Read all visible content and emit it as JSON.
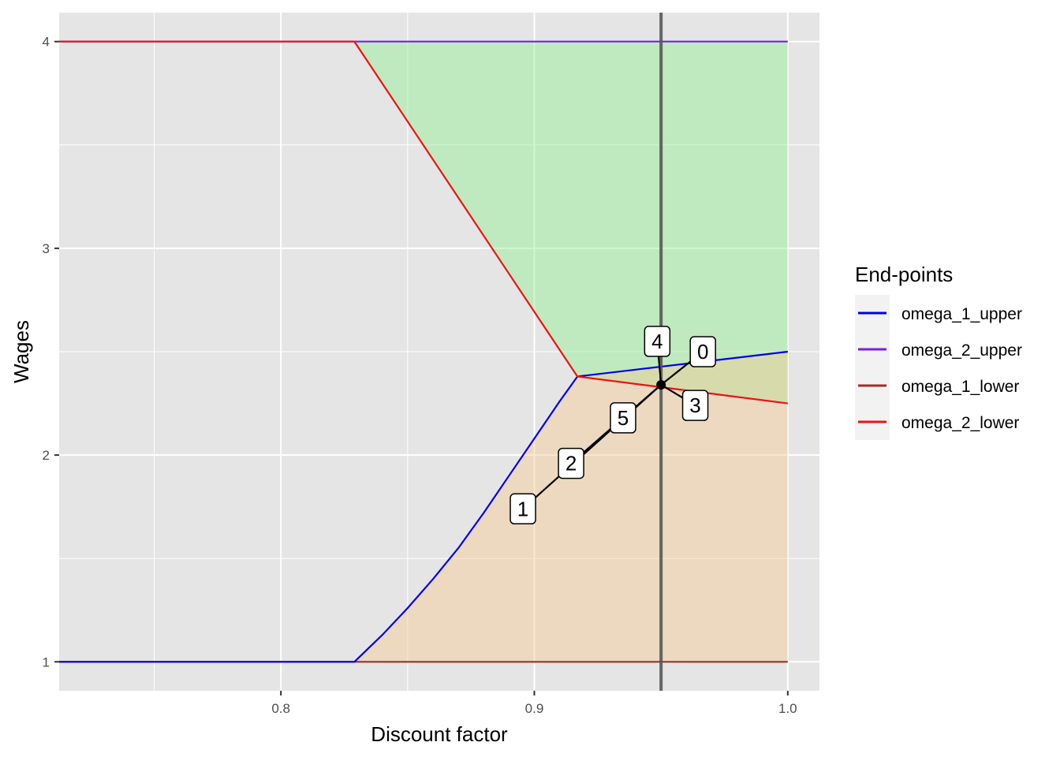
{
  "chart_data": {
    "type": "line",
    "title": "",
    "xlabel": "Discount factor",
    "ylabel": "Wages",
    "xlim": [
      0.7125,
      1.0125
    ],
    "ylim": [
      0.86,
      4.14
    ],
    "x_ticks": [
      0.8,
      0.9,
      1.0
    ],
    "x_tick_labels": [
      "0.8",
      "0.9",
      "1.0"
    ],
    "y_ticks": [
      1,
      2,
      3,
      4
    ],
    "y_tick_labels": [
      "1",
      "2",
      "3",
      "4"
    ],
    "grid": true,
    "panel_background": "#e5e5e5",
    "legend": {
      "title": "End-points",
      "position": "right"
    },
    "series": [
      {
        "name": "omega_1_upper",
        "color": "#0000ee",
        "points": [
          [
            0.7125,
            1.0
          ],
          [
            0.829,
            1.0
          ],
          [
            0.84,
            1.13
          ],
          [
            0.85,
            1.26
          ],
          [
            0.86,
            1.4
          ],
          [
            0.87,
            1.55
          ],
          [
            0.88,
            1.72
          ],
          [
            0.89,
            1.9
          ],
          [
            0.9,
            2.08
          ],
          [
            0.91,
            2.26
          ],
          [
            0.917,
            2.38
          ],
          [
            1.0,
            2.5
          ]
        ]
      },
      {
        "name": "omega_2_upper",
        "color": "#7a1fe0",
        "points": [
          [
            0.7125,
            4.0
          ],
          [
            1.0,
            4.0
          ]
        ]
      },
      {
        "name": "omega_1_lower",
        "color": "#a52a2a",
        "points": [
          [
            0.7125,
            1.0
          ],
          [
            1.0,
            1.0
          ]
        ]
      },
      {
        "name": "omega_2_lower",
        "color": "#ee1111",
        "points": [
          [
            0.7125,
            4.0
          ],
          [
            0.829,
            4.0
          ],
          [
            0.917,
            2.38
          ],
          [
            1.0,
            2.25
          ]
        ]
      }
    ],
    "regions": [
      {
        "color": "#90ee90",
        "opacity": 0.45,
        "points": [
          [
            0.829,
            4.0
          ],
          [
            1.0,
            4.0
          ],
          [
            1.0,
            2.25
          ],
          [
            0.917,
            2.38
          ]
        ]
      },
      {
        "color": "#f4c993",
        "opacity": 0.45,
        "points": [
          [
            0.829,
            1.0
          ],
          [
            0.84,
            1.13
          ],
          [
            0.85,
            1.26
          ],
          [
            0.86,
            1.4
          ],
          [
            0.87,
            1.55
          ],
          [
            0.88,
            1.72
          ],
          [
            0.89,
            1.9
          ],
          [
            0.9,
            2.08
          ],
          [
            0.91,
            2.26
          ],
          [
            0.917,
            2.38
          ],
          [
            1.0,
            2.5
          ],
          [
            1.0,
            1.0
          ]
        ]
      }
    ],
    "vline": {
      "x": 0.95,
      "color": "#555555"
    },
    "point": {
      "x": 0.95,
      "y": 2.34
    },
    "labels": [
      {
        "text": "0",
        "x": 0.9665,
        "y": 2.5
      },
      {
        "text": "1",
        "x": 0.8955,
        "y": 1.74
      },
      {
        "text": "2",
        "x": 0.9145,
        "y": 1.96
      },
      {
        "text": "3",
        "x": 0.9635,
        "y": 2.24
      },
      {
        "text": "4",
        "x": 0.9485,
        "y": 2.55
      },
      {
        "text": "5",
        "x": 0.935,
        "y": 2.18
      }
    ]
  }
}
